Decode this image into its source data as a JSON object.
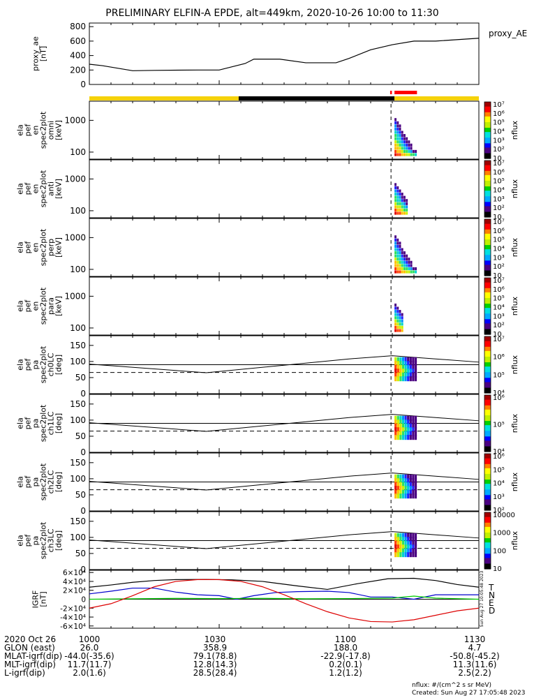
{
  "chart_data": {
    "type": "line",
    "title": "PRELIMINARY ELFIN-A EPDE, alt=449km, 2020-10-26 10:00 to 11:30",
    "time_range_minutes": [
      0,
      90
    ],
    "panels": [
      {
        "id": "proxy_ae",
        "ylabel": [
          "proxy_ae",
          "[nT]"
        ],
        "right_label": "proxy_AE",
        "ylim": [
          0,
          850
        ],
        "yticks": [
          "0",
          "200",
          "400",
          "600",
          "800"
        ],
        "series": [
          {
            "x": [
              0,
              3,
              10,
              15,
              25,
              30,
              36,
              38,
              44,
              50,
              57,
              60,
              65,
              70,
              75,
              80,
              90
            ],
            "values": [
              280,
              260,
              190,
              195,
              200,
              200,
              290,
              350,
              350,
              300,
              300,
              360,
              480,
              550,
              600,
              600,
              640
            ],
            "color": "#000000"
          }
        ]
      },
      {
        "id": "status_bar",
        "segments": [
          {
            "from": 0,
            "to": 34.5,
            "color": "#f5d20a"
          },
          {
            "from": 34.5,
            "to": 70.5,
            "color": "#000000"
          },
          {
            "from": 70.5,
            "to": 90,
            "color": "#f5d20a"
          }
        ],
        "marks": [
          {
            "from": 69.5,
            "to": 69.9,
            "color": "#ff0000"
          },
          {
            "from": 70.5,
            "to": 75.7,
            "color": "#ff0000"
          }
        ]
      },
      {
        "id": "en_omni",
        "ylabel": [
          "ela",
          "pef",
          "en",
          "spec2plot",
          "omni",
          "[keV]"
        ],
        "ylim_log": [
          60,
          4000
        ],
        "yticks": [
          "100",
          "1000"
        ],
        "colorbar": {
          "label": "nflux",
          "ticks": [
            "10",
            "10²",
            "10³",
            "10⁴",
            "10⁵",
            "10⁶",
            "10⁷"
          ]
        }
      },
      {
        "id": "en_anti",
        "ylabel": [
          "ela",
          "pef",
          "en",
          "spec2plot",
          "anti",
          "[keV]"
        ],
        "ylim_log": [
          60,
          4000
        ],
        "yticks": [
          "100",
          "1000"
        ],
        "colorbar": {
          "label": "nflux",
          "ticks": [
            "10",
            "10²",
            "10³",
            "10⁴",
            "10⁵",
            "10⁶",
            "10⁷"
          ]
        }
      },
      {
        "id": "en_perp",
        "ylabel": [
          "ela",
          "pef",
          "en",
          "spec2plot",
          "perp",
          "[keV]"
        ],
        "ylim_log": [
          60,
          4000
        ],
        "yticks": [
          "100",
          "1000"
        ],
        "colorbar": {
          "label": "nflux",
          "ticks": [
            "10",
            "10²",
            "10³",
            "10⁴",
            "10⁵",
            "10⁶",
            "10⁷"
          ]
        }
      },
      {
        "id": "en_para",
        "ylabel": [
          "ela",
          "pef",
          "en",
          "spec2plot",
          "para",
          "[keV]"
        ],
        "ylim_log": [
          60,
          4000
        ],
        "yticks": [
          "100",
          "1000"
        ],
        "colorbar": {
          "label": "nflux",
          "ticks": [
            "10",
            "10²",
            "10³",
            "10⁴",
            "10⁵",
            "10⁶",
            "10⁷"
          ]
        }
      },
      {
        "id": "ch0LC",
        "ylabel": [
          "ela",
          "pef",
          "pa",
          "spec2plot",
          "ch0LC",
          "[deg]"
        ],
        "ylim": [
          0,
          180
        ],
        "yticks": [
          "0",
          "50",
          "100",
          "150"
        ],
        "colorbar": {
          "label": "nflux",
          "ticks": [
            "10⁴",
            "10⁵",
            "10⁶",
            "10⁷"
          ]
        }
      },
      {
        "id": "ch1LC",
        "ylabel": [
          "ela",
          "pef",
          "pa",
          "spec2plot",
          "ch1LC",
          "[deg]"
        ],
        "ylim": [
          0,
          180
        ],
        "yticks": [
          "0",
          "50",
          "100",
          "150"
        ],
        "colorbar": {
          "label": "nflux",
          "ticks": [
            "10⁴",
            "10⁵",
            "10⁶"
          ]
        }
      },
      {
        "id": "ch2LC",
        "ylabel": [
          "ela",
          "pef",
          "pa",
          "spec2plot",
          "ch2LC",
          "[deg]"
        ],
        "ylim": [
          0,
          180
        ],
        "yticks": [
          "0",
          "50",
          "100",
          "150"
        ],
        "colorbar": {
          "label": "nflux",
          "ticks": [
            "10²",
            "10³",
            "10⁴",
            "10⁵",
            "10⁶"
          ]
        }
      },
      {
        "id": "ch3LC",
        "ylabel": [
          "ela",
          "pef",
          "pa",
          "spec2plot",
          "ch3LC",
          "[deg]"
        ],
        "ylim": [
          0,
          180
        ],
        "yticks": [
          "0",
          "50",
          "100",
          "150"
        ],
        "colorbar": {
          "label": "nflux",
          "ticks": [
            "10",
            "100",
            "1000",
            "10000"
          ]
        }
      },
      {
        "id": "igrf",
        "ylabel": [
          "IGRF",
          "[nT]"
        ],
        "ylim": [
          -65000,
          65000
        ],
        "yticks": [
          "-6×10⁴",
          "-4×10⁴",
          "-2×10⁴",
          "0",
          "2×10⁴",
          "4×10⁴",
          "6×10⁴"
        ],
        "legend": [
          "T",
          "N",
          "E",
          "D"
        ],
        "side_note": "Sun Aug 27 10:05:48 2023",
        "series": [
          {
            "name": "T",
            "color": "#000000",
            "x": [
              0,
              5,
              10,
              15,
              20,
              27,
              33,
              40,
              48,
              55,
              62,
              69,
              75,
              80,
              85,
              90
            ],
            "values": [
              27000,
              32000,
              38000,
              42000,
              44000,
              44500,
              43500,
              40000,
              30000,
              22000,
              35000,
              46000,
              47000,
              42000,
              33000,
              27000
            ]
          },
          {
            "name": "N",
            "color": "#0000cc",
            "x": [
              0,
              5,
              10,
              15,
              20,
              25,
              30,
              34,
              38,
              43,
              48,
              55,
              60,
              65,
              70,
              75,
              80,
              90
            ],
            "values": [
              12000,
              18000,
              25000,
              25000,
              16000,
              10000,
              8000,
              0,
              8000,
              15000,
              17000,
              18000,
              15000,
              5000,
              5000,
              0,
              10000,
              10000
            ]
          },
          {
            "name": "E",
            "color": "#00cc00",
            "x": [
              0,
              10,
              20,
              30,
              40,
              50,
              60,
              70,
              75,
              80,
              90
            ],
            "values": [
              0,
              1000,
              2000,
              1500,
              2000,
              1000,
              1500,
              2500,
              7000,
              2500,
              0
            ]
          },
          {
            "name": "D",
            "color": "#dd0000",
            "x": [
              0,
              5,
              10,
              15,
              20,
              25,
              30,
              35,
              40,
              45,
              50,
              55,
              60,
              65,
              70,
              75,
              80,
              85,
              90
            ],
            "values": [
              -20000,
              -10000,
              8000,
              28000,
              40000,
              44000,
              44000,
              40000,
              28000,
              10000,
              -10000,
              -28000,
              -42000,
              -50000,
              -51000,
              -46000,
              -36000,
              -26000,
              -20000
            ]
          }
        ]
      }
    ],
    "xaxis": {
      "ticks": [
        "1000",
        "1030",
        "1100",
        "1130"
      ],
      "rows": [
        {
          "label": "2020 Oct 26",
          "values": [
            "1000",
            "1030",
            "1100",
            "1130"
          ]
        },
        {
          "label": "GLON (east)",
          "values": [
            "26.0",
            "358.9",
            "188.0",
            "4.7"
          ]
        },
        {
          "label": "MLAT-igrf(dip)",
          "values": [
            "-44.0(-35.6)",
            "79.1(78.8)",
            "-22.9(-17.8)",
            "-50.8(-45.2)"
          ]
        },
        {
          "label": "MLT-igrf(dip)",
          "values": [
            "11.7(11.7)",
            "12.8(14.3)",
            "0.2(0.1)",
            "11.3(11.6)"
          ]
        },
        {
          "label": "L-igrf(dip)",
          "values": [
            "2.0(1.6)",
            "28.5(28.4)",
            "1.2(1.2)",
            "2.5(2.2)"
          ]
        }
      ]
    },
    "footer": {
      "units": "nflux: #/(cm^2 s sr MeV)",
      "created": "Created: Sun Aug 27 17:05:48 2023"
    }
  }
}
